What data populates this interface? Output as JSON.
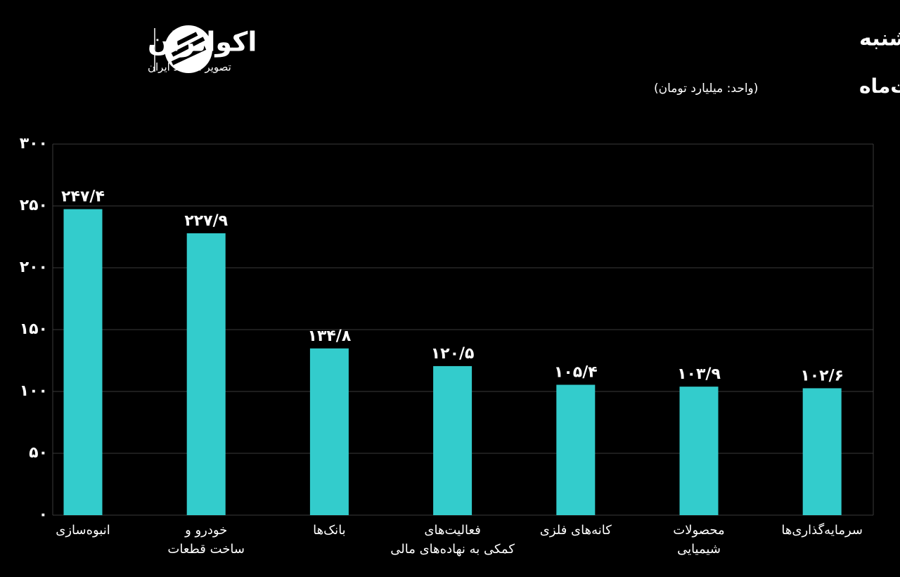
{
  "chart_data": {
    "type": "bar",
    "title": "بیشترین ورود پول حقیقی به صنایع در معاملات یکشنبه",
    "subtitle": "دهم اردیبهشت‌ماه",
    "unit_note": "(واحد: میلیارد تومان)",
    "brand": {
      "name": "اکوایران",
      "tagline": "تصویر اقتصاد ایران"
    },
    "categories": [
      [
        "انبوه‌سازی"
      ],
      [
        "خودرو و",
        "ساخت قطعات"
      ],
      [
        "بانک‌ها"
      ],
      [
        "فعالیت‌های",
        "کمکی به نهاده‌های مالی"
      ],
      [
        "کانه‌های فلزی"
      ],
      [
        "محصولات",
        "شیمیایی"
      ],
      [
        "سرمایه‌گذاری‌ها"
      ]
    ],
    "values": [
      247.4,
      227.9,
      134.8,
      120.5,
      105.4,
      103.9,
      102.6
    ],
    "value_labels": [
      "۲۴۷/۴",
      "۲۲۷/۹",
      "۱۳۴/۸",
      "۱۲۰/۵",
      "۱۰۵/۴",
      "۱۰۳/۹",
      "۱۰۲/۶"
    ],
    "color": "#33cccc",
    "ylim": [
      0,
      300
    ],
    "yticks": [
      {
        "value": 0,
        "label": "۰"
      },
      {
        "value": 50,
        "label": "۵۰"
      },
      {
        "value": 100,
        "label": "۱۰۰"
      },
      {
        "value": 150,
        "label": "۱۵۰"
      },
      {
        "value": 200,
        "label": "۲۰۰"
      },
      {
        "value": 250,
        "label": "۲۵۰"
      },
      {
        "value": 300,
        "label": "۳۰۰"
      }
    ],
    "grid": true
  }
}
